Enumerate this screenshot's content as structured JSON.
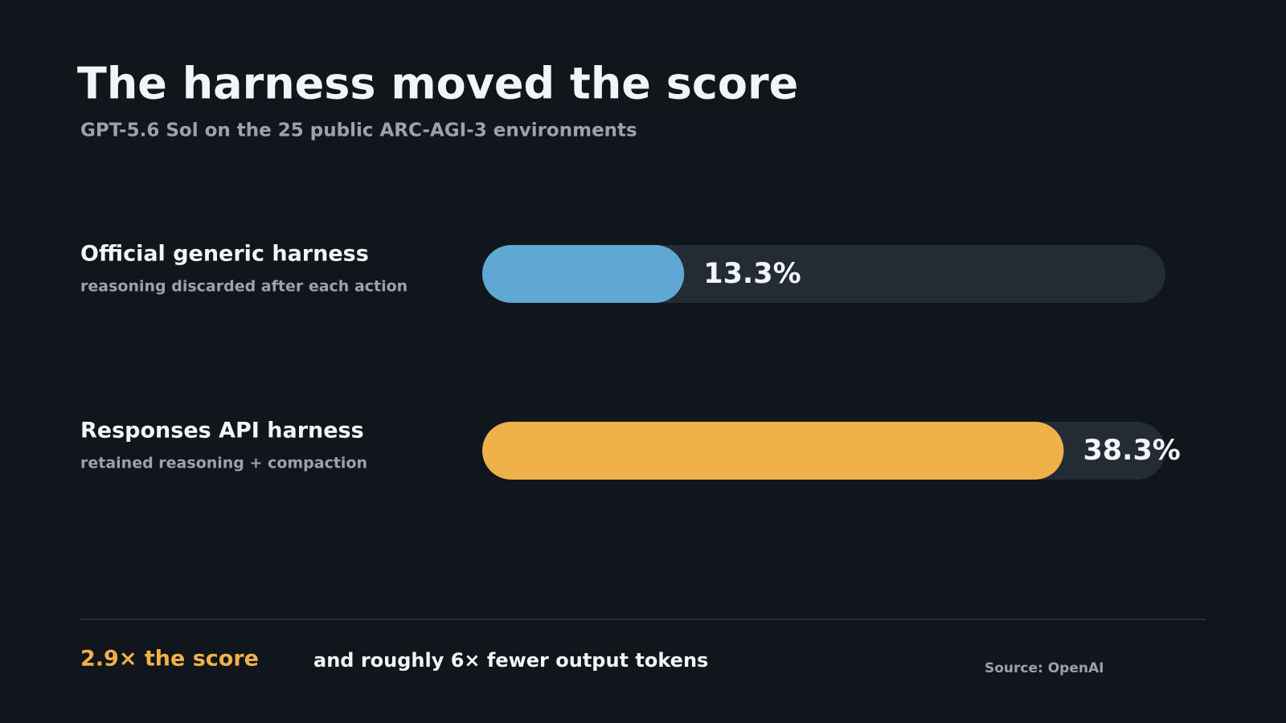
{
  "chart_data": {
    "type": "bar",
    "orientation": "horizontal",
    "title": "The harness moved the score",
    "subtitle": "GPT-5.6 Sol on the 25 public ARC-AGI-3 environments",
    "categories": [
      "Official generic harness",
      "Responses API harness"
    ],
    "category_notes": [
      "reasoning discarded after each action",
      "retained reasoning + compaction"
    ],
    "values": [
      13.3,
      38.3
    ],
    "value_labels": [
      "13.3%",
      "38.3%"
    ],
    "colors": [
      "#5fa8d3",
      "#f0b04a"
    ],
    "track_color": "#232c35",
    "xlim": [
      0,
      45
    ],
    "annotations": {
      "highlight": "2.9× the score",
      "note": "and roughly 6× fewer output tokens",
      "source": "Source: OpenAI"
    }
  }
}
